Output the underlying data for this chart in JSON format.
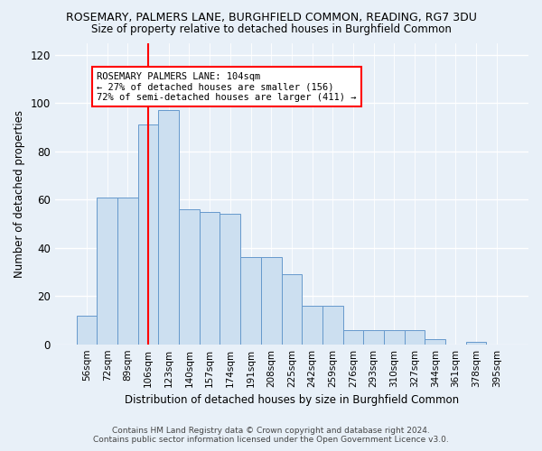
{
  "title": "ROSEMARY, PALMERS LANE, BURGHFIELD COMMON, READING, RG7 3DU",
  "subtitle": "Size of property relative to detached houses in Burghfield Common",
  "xlabel": "Distribution of detached houses by size in Burghfield Common",
  "ylabel": "Number of detached properties",
  "bar_labels": [
    "56sqm",
    "72sqm",
    "89sqm",
    "106sqm",
    "123sqm",
    "140sqm",
    "157sqm",
    "174sqm",
    "191sqm",
    "208sqm",
    "225sqm",
    "242sqm",
    "259sqm",
    "276sqm",
    "293sqm",
    "310sqm",
    "327sqm",
    "344sqm",
    "361sqm",
    "378sqm",
    "395sqm"
  ],
  "bar_values": [
    12,
    61,
    61,
    91,
    97,
    56,
    55,
    54,
    36,
    36,
    29,
    16,
    16,
    6,
    6,
    6,
    6,
    2,
    0,
    1,
    0
  ],
  "bar_color": "#ccdff0",
  "bar_edge_color": "#6699cc",
  "red_line_index": 3,
  "annotation_text": "ROSEMARY PALMERS LANE: 104sqm\n← 27% of detached houses are smaller (156)\n72% of semi-detached houses are larger (411) →",
  "annotation_box_color": "white",
  "annotation_box_edge": "red",
  "ylim": [
    0,
    125
  ],
  "yticks": [
    0,
    20,
    40,
    60,
    80,
    100,
    120
  ],
  "background_color": "#e8f0f8",
  "grid_color": "#ffffff",
  "footer_line1": "Contains HM Land Registry data © Crown copyright and database right 2024.",
  "footer_line2": "Contains public sector information licensed under the Open Government Licence v3.0."
}
